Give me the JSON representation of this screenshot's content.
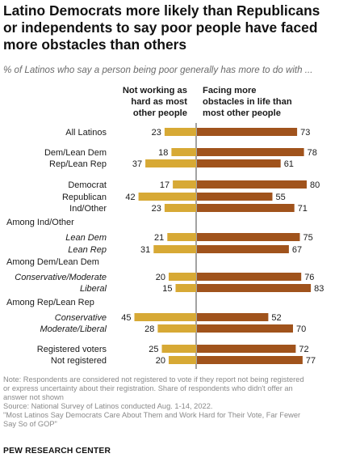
{
  "title": "Latino Democrats more likely than Republicans or independents to say poor people have faced more obstacles than others",
  "subtitle": "% of Latinos who say a person being poor generally has more to do with ...",
  "chart_data": {
    "type": "bar",
    "orientation": "horizontal-diverging",
    "series": [
      {
        "name": "Not working as hard as most other people",
        "color": "#d7a935"
      },
      {
        "name": "Facing more obstacles in life than most other people",
        "color": "#a0531c"
      }
    ],
    "xlim": [
      0,
      100
    ],
    "grid": false,
    "legend_position": "top (column headers)",
    "rows": [
      {
        "label": "All Latinos",
        "italic": false,
        "left": 23,
        "right": 73
      },
      {
        "label": "Dem/Lean Dem",
        "italic": false,
        "left": 18,
        "right": 78
      },
      {
        "label": "Rep/Lean Rep",
        "italic": false,
        "left": 37,
        "right": 61
      },
      {
        "label": "Democrat",
        "italic": false,
        "left": 17,
        "right": 80
      },
      {
        "label": "Republican",
        "italic": false,
        "left": 42,
        "right": 55
      },
      {
        "label": "Ind/Other",
        "italic": false,
        "left": 23,
        "right": 71
      },
      {
        "label": "Lean Dem",
        "italic": true,
        "left": 21,
        "right": 75
      },
      {
        "label": "Lean Rep",
        "italic": true,
        "left": 31,
        "right": 67
      },
      {
        "label": "Conservative/Moderate",
        "italic": true,
        "left": 20,
        "right": 76
      },
      {
        "label": "Liberal",
        "italic": true,
        "left": 15,
        "right": 83
      },
      {
        "label": "Conservative",
        "italic": true,
        "left": 45,
        "right": 52
      },
      {
        "label": "Moderate/Liberal",
        "italic": true,
        "left": 28,
        "right": 70
      },
      {
        "label": "Registered voters",
        "italic": false,
        "left": 25,
        "right": 72
      },
      {
        "label": "Not registered",
        "italic": false,
        "left": 20,
        "right": 77
      }
    ],
    "group_headers": [
      "Among Ind/Other",
      "Among Dem/Lean Dem",
      "Among Rep/Lean Rep"
    ]
  },
  "legend": {
    "left_header": [
      "Not working as",
      "hard as most",
      "other people"
    ],
    "right_header": [
      "Facing more",
      "obstacles in life than",
      "most other people"
    ]
  },
  "notes": [
    "Note: Respondents are considered not registered to vote if they report not being registered",
    "or express uncertainty about their registration. Share of respondents who didn't offer an",
    "answer not shown",
    "Source: National Survey of Latinos conducted Aug. 1-14, 2022.",
    "\"Most Latinos Say Democrats Care About Them and Work Hard for Their Vote, Far Fewer",
    "Say So of GOP\""
  ],
  "source_label": "PEW RESEARCH CENTER"
}
